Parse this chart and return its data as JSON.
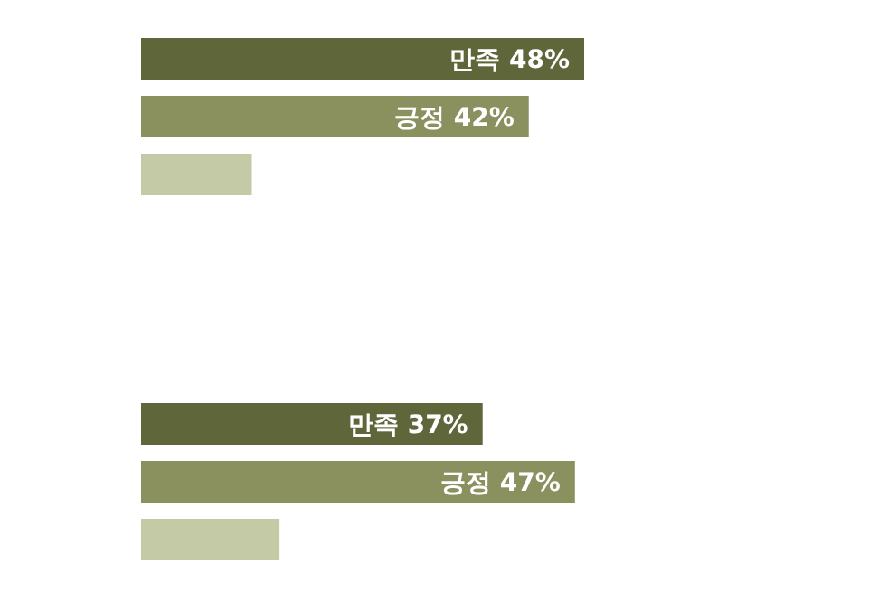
{
  "chart_data": [
    {
      "type": "bar",
      "orientation": "horizontal",
      "categories": [
        null,
        null,
        null
      ],
      "values": [
        48,
        42,
        12
      ],
      "colors": [
        "#5e663a",
        "#8a915f",
        "#c4caa6"
      ],
      "value_labels": [
        "만족 48%",
        "긍정 42%",
        null
      ]
    },
    {
      "type": "bar",
      "orientation": "horizontal",
      "categories": [
        null,
        null,
        null
      ],
      "values": [
        37,
        47,
        15
      ],
      "colors": [
        "#5e663a",
        "#8a915f",
        "#c4caa6"
      ],
      "value_labels": [
        "만족 37%",
        "긍정 47%",
        null
      ]
    }
  ]
}
